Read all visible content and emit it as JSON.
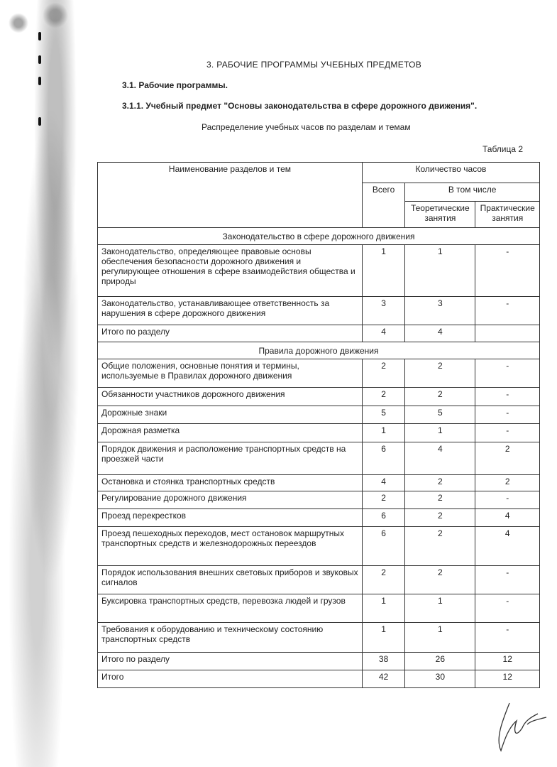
{
  "heading": "3. РАБОЧИЕ ПРОГРАММЫ УЧЕБНЫХ ПРЕДМЕТОВ",
  "subheading": "3.1. Рабочие программы.",
  "subject": "3.1.1. Учебный предмет \"Основы законодательства в сфере дорожного движения\".",
  "caption": "Распределение учебных часов по разделам и темам",
  "table_number": "Таблица 2",
  "table": {
    "headers": {
      "name": "Наименование разделов и тем",
      "hours": "Количество часов",
      "total": "Всего",
      "including": "В том числе",
      "theory": "Теоретические занятия",
      "practice": "Практические занятия"
    },
    "sections": [
      {
        "title": "Законодательство в сфере дорожного движения",
        "rows": [
          {
            "name": "Законодательство, определяющее правовые основы обеспечения безопасности дорожного движения и регулирующее отношения в сфере взаимодействия общества и природы",
            "total": "1",
            "theory": "1",
            "practice": "-",
            "h": 73
          },
          {
            "name": "Законодательство, устанавливающее ответственность за нарушения в сфере дорожного движения",
            "total": "3",
            "theory": "3",
            "practice": "-",
            "h": 40
          },
          {
            "name": "Итого по разделу",
            "total": "4",
            "theory": "4",
            "practice": "",
            "h": 24
          }
        ]
      },
      {
        "title": "Правила дорожного движения",
        "rows": [
          {
            "name": "Общие положения, основные понятия и термины, используемые в Правилах дорожного движения",
            "total": "2",
            "theory": "2",
            "practice": "-",
            "h": 40
          },
          {
            "name": "Обязанности участников дорожного движения",
            "total": "2",
            "theory": "2",
            "practice": "-",
            "h": 26
          },
          {
            "name": "Дорожные знаки",
            "total": "5",
            "theory": "5",
            "practice": "-",
            "h": 25
          },
          {
            "name": "Дорожная разметка",
            "total": "1",
            "theory": "1",
            "practice": "-",
            "h": 26
          },
          {
            "name": "Порядок движения и расположение транспортных средств на проезжей части",
            "total": "6",
            "theory": "4",
            "practice": "2",
            "h": 46
          },
          {
            "name": "Остановка и стоянка транспортных средств",
            "total": "4",
            "theory": "2",
            "practice": "2",
            "h": 23
          },
          {
            "name": "Регулирование дорожного движения",
            "total": "2",
            "theory": "2",
            "practice": "-",
            "h": 25
          },
          {
            "name": "Проезд перекрестков",
            "total": "6",
            "theory": "2",
            "practice": "4",
            "h": 25
          },
          {
            "name": "Проезд пешеходных переходов, мест остановок маршрутных транспортных средств и железнодорожных переездов",
            "total": "6",
            "theory": "2",
            "practice": "4",
            "h": 55
          },
          {
            "name": "Порядок использования внешних световых приборов и звуковых сигналов",
            "total": "2",
            "theory": "2",
            "practice": "-",
            "h": 40
          },
          {
            "name": "Буксировка транспортных средств, перевозка людей и грузов",
            "total": "1",
            "theory": "1",
            "practice": "-",
            "h": 40
          },
          {
            "name": "Требования к оборудованию и техническому состоянию транспортных средств",
            "total": "1",
            "theory": "1",
            "practice": "-",
            "h": 42
          },
          {
            "name": "Итого по разделу",
            "total": "38",
            "theory": "26",
            "practice": "12",
            "h": 25
          }
        ]
      }
    ],
    "grand_total": {
      "name": "Итого",
      "total": "42",
      "theory": "30",
      "practice": "12"
    }
  }
}
